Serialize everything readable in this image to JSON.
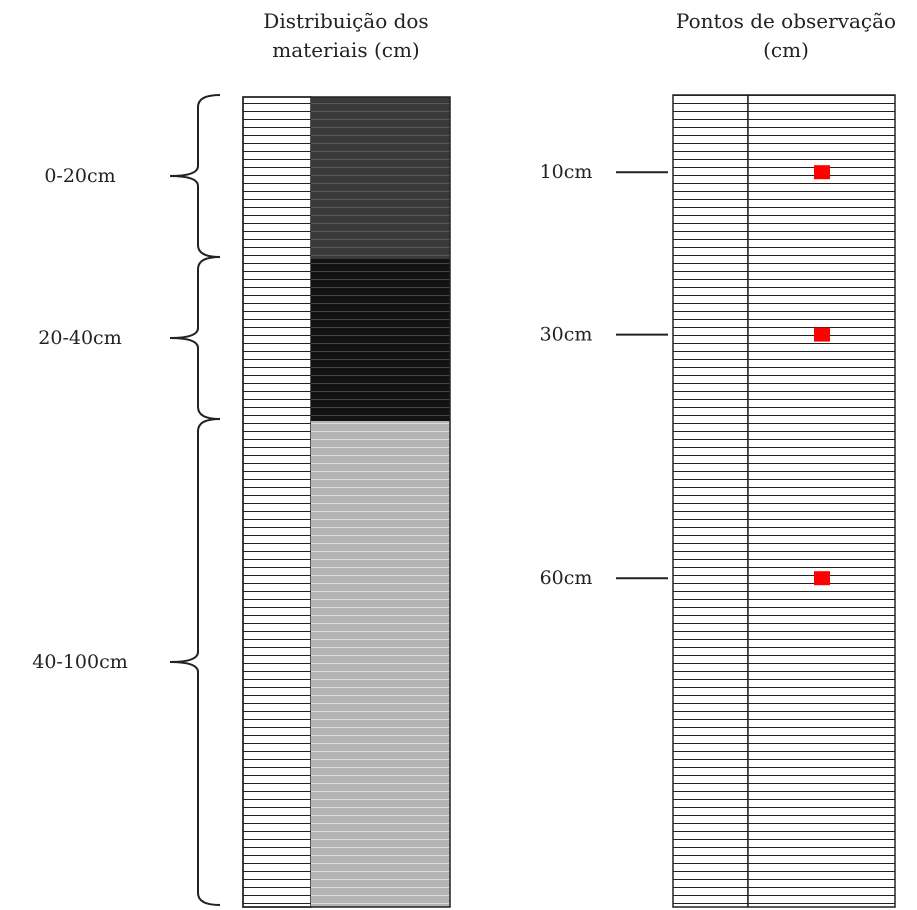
{
  "left_panel": {
    "title_line1": "Distribuição dos",
    "title_line2": "materiais (cm)",
    "layers": [
      {
        "label": "0-20cm",
        "from_cm": 0,
        "to_cm": 20,
        "fill": "#3a3a3a"
      },
      {
        "label": "20-40cm",
        "from_cm": 20,
        "to_cm": 40,
        "fill": "#121212"
      },
      {
        "label": "40-100cm",
        "from_cm": 40,
        "to_cm": 100,
        "fill": "#b4b4b4"
      }
    ]
  },
  "right_panel": {
    "title_line1": "Pontos de observação",
    "title_line2": "(cm)",
    "points": [
      {
        "label": "10cm",
        "depth_cm": 10
      },
      {
        "label": "30cm",
        "depth_cm": 30
      },
      {
        "label": "60cm",
        "depth_cm": 60
      }
    ]
  },
  "colors": {
    "stripe": "#222222",
    "marker": "#ff0000"
  }
}
